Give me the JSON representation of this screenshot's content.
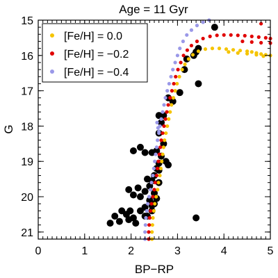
{
  "chart_data": {
    "type": "scatter",
    "title": "Age = 11 Gyr",
    "xlabel": "BP−RP",
    "ylabel": "G",
    "xlim": [
      0,
      5
    ],
    "ylim": [
      21.2,
      15
    ],
    "y_inverted": true,
    "x_ticks": [
      0,
      1,
      2,
      3,
      4,
      5
    ],
    "x_tick_labels": [
      "0",
      "1",
      "2",
      "3",
      "4",
      "5"
    ],
    "y_ticks": [
      15,
      16,
      17,
      18,
      19,
      20,
      21
    ],
    "y_tick_labels": [
      "15",
      "16",
      "17",
      "18",
      "19",
      "20",
      "21"
    ],
    "grid": false,
    "legend_position": "top-left",
    "series": [
      {
        "name": "[Fe/H] = 0.0",
        "color": "#f5c400",
        "points": [
          [
            2.45,
            21.2
          ],
          [
            2.45,
            21.0
          ],
          [
            2.46,
            20.8
          ],
          [
            2.47,
            20.6
          ],
          [
            2.49,
            20.4
          ],
          [
            2.51,
            20.2
          ],
          [
            2.54,
            20.0
          ],
          [
            2.57,
            19.8
          ],
          [
            2.59,
            19.6
          ],
          [
            2.62,
            19.4
          ],
          [
            2.64,
            19.2
          ],
          [
            2.66,
            19.0
          ],
          [
            2.68,
            18.8
          ],
          [
            2.7,
            18.6
          ],
          [
            2.72,
            18.4
          ],
          [
            2.75,
            18.2
          ],
          [
            2.78,
            18.0
          ],
          [
            2.81,
            17.8
          ],
          [
            2.84,
            17.6
          ],
          [
            2.87,
            17.4
          ],
          [
            2.91,
            17.2
          ],
          [
            2.95,
            17.0
          ],
          [
            2.99,
            16.8
          ],
          [
            3.04,
            16.6
          ],
          [
            3.1,
            16.4
          ],
          [
            3.16,
            16.25
          ],
          [
            3.24,
            16.1
          ],
          [
            3.33,
            15.98
          ],
          [
            3.45,
            15.88
          ],
          [
            3.6,
            15.82
          ],
          [
            3.75,
            15.8
          ],
          [
            3.9,
            15.8
          ],
          [
            4.05,
            15.82
          ],
          [
            4.2,
            15.84
          ],
          [
            4.35,
            15.86
          ],
          [
            4.5,
            15.88
          ],
          [
            4.6,
            15.9
          ],
          [
            4.7,
            15.93
          ],
          [
            4.8,
            15.96
          ],
          [
            4.9,
            15.98
          ],
          [
            5.0,
            16.0
          ],
          [
            4.1,
            15.9
          ],
          [
            4.3,
            15.93
          ],
          [
            4.5,
            15.95
          ],
          [
            4.7,
            15.98
          ],
          [
            4.85,
            16.02
          ]
        ]
      },
      {
        "name": "[Fe/H] = −0.2",
        "color": "#e00000",
        "points": [
          [
            2.38,
            21.2
          ],
          [
            2.38,
            21.0
          ],
          [
            2.39,
            20.8
          ],
          [
            2.4,
            20.6
          ],
          [
            2.42,
            20.4
          ],
          [
            2.44,
            20.2
          ],
          [
            2.47,
            20.0
          ],
          [
            2.5,
            19.8
          ],
          [
            2.52,
            19.6
          ],
          [
            2.55,
            19.4
          ],
          [
            2.57,
            19.2
          ],
          [
            2.59,
            19.0
          ],
          [
            2.61,
            18.8
          ],
          [
            2.63,
            18.6
          ],
          [
            2.65,
            18.4
          ],
          [
            2.68,
            18.2
          ],
          [
            2.71,
            18.0
          ],
          [
            2.74,
            17.8
          ],
          [
            2.77,
            17.6
          ],
          [
            2.8,
            17.4
          ],
          [
            2.84,
            17.2
          ],
          [
            2.88,
            17.0
          ],
          [
            2.92,
            16.8
          ],
          [
            2.96,
            16.6
          ],
          [
            3.01,
            16.4
          ],
          [
            3.07,
            16.2
          ],
          [
            3.13,
            16.0
          ],
          [
            3.21,
            15.85
          ],
          [
            3.3,
            15.72
          ],
          [
            3.42,
            15.6
          ],
          [
            3.55,
            15.52
          ],
          [
            3.7,
            15.46
          ],
          [
            3.85,
            15.43
          ],
          [
            4.0,
            15.42
          ],
          [
            4.15,
            15.42
          ],
          [
            4.3,
            15.43
          ],
          [
            4.45,
            15.44
          ],
          [
            4.6,
            15.46
          ],
          [
            4.75,
            15.48
          ],
          [
            4.9,
            15.5
          ],
          [
            5.0,
            15.52
          ],
          [
            4.8,
            15.1
          ],
          [
            4.4,
            15.6
          ],
          [
            4.6,
            15.62
          ],
          [
            4.8,
            15.64
          ],
          [
            5.0,
            15.65
          ]
        ]
      },
      {
        "name": "[Fe/H] = −0.4",
        "color": "#9a98e8",
        "points": [
          [
            2.3,
            21.2
          ],
          [
            2.3,
            21.0
          ],
          [
            2.31,
            20.8
          ],
          [
            2.32,
            20.6
          ],
          [
            2.34,
            20.4
          ],
          [
            2.36,
            20.2
          ],
          [
            2.39,
            20.0
          ],
          [
            2.42,
            19.8
          ],
          [
            2.44,
            19.6
          ],
          [
            2.47,
            19.4
          ],
          [
            2.49,
            19.2
          ],
          [
            2.51,
            19.0
          ],
          [
            2.53,
            18.8
          ],
          [
            2.55,
            18.6
          ],
          [
            2.57,
            18.4
          ],
          [
            2.6,
            18.2
          ],
          [
            2.62,
            18.0
          ],
          [
            2.65,
            17.8
          ],
          [
            2.68,
            17.6
          ],
          [
            2.71,
            17.4
          ],
          [
            2.74,
            17.2
          ],
          [
            2.78,
            17.0
          ],
          [
            2.82,
            16.8
          ],
          [
            2.86,
            16.6
          ],
          [
            2.9,
            16.4
          ],
          [
            2.95,
            16.2
          ],
          [
            3.0,
            16.0
          ],
          [
            3.05,
            15.8
          ],
          [
            3.12,
            15.6
          ],
          [
            3.2,
            15.42
          ],
          [
            3.3,
            15.28
          ],
          [
            3.42,
            15.15
          ],
          [
            3.55,
            15.06
          ],
          [
            3.68,
            15.0
          ],
          [
            3.8,
            14.96
          ],
          [
            2.56,
            17.9
          ],
          [
            2.58,
            18.05
          ],
          [
            2.6,
            18.15
          ]
        ]
      }
    ],
    "observed": {
      "name": "",
      "color": "#000000",
      "points": [
        [
          1.55,
          20.75
        ],
        [
          1.65,
          20.55
        ],
        [
          1.75,
          20.7
        ],
        [
          1.8,
          20.4
        ],
        [
          1.9,
          20.5
        ],
        [
          1.95,
          20.65
        ],
        [
          1.98,
          20.4
        ],
        [
          2.05,
          20.6
        ],
        [
          2.1,
          20.75
        ],
        [
          2.2,
          20.4
        ],
        [
          2.3,
          20.3
        ],
        [
          2.35,
          20.55
        ],
        [
          2.45,
          20.25
        ],
        [
          2.5,
          20.2
        ],
        [
          2.55,
          20.05
        ],
        [
          1.95,
          19.8
        ],
        [
          2.05,
          19.95
        ],
        [
          2.2,
          20.0
        ],
        [
          2.3,
          19.85
        ],
        [
          2.4,
          19.7
        ],
        [
          2.45,
          19.55
        ],
        [
          2.5,
          19.4
        ],
        [
          2.55,
          19.2
        ],
        [
          2.6,
          19.05
        ],
        [
          2.55,
          18.7
        ],
        [
          2.45,
          18.75
        ],
        [
          2.3,
          18.75
        ],
        [
          2.2,
          18.6
        ],
        [
          2.05,
          18.7
        ],
        [
          2.7,
          18.5
        ],
        [
          2.75,
          19.0
        ],
        [
          2.8,
          19.1
        ],
        [
          2.6,
          18.2
        ],
        [
          2.65,
          17.9
        ],
        [
          2.7,
          17.7
        ],
        [
          2.9,
          17.3
        ],
        [
          2.6,
          17.7
        ],
        [
          2.8,
          17.2
        ],
        [
          2.35,
          19.5
        ],
        [
          2.15,
          19.75
        ],
        [
          2.4,
          20.1
        ],
        [
          2.6,
          19.6
        ],
        [
          3.4,
          20.6
        ],
        [
          3.05,
          17.05
        ],
        [
          3.15,
          16.4
        ],
        [
          3.2,
          16.1
        ],
        [
          3.35,
          16.0
        ],
        [
          3.4,
          15.9
        ],
        [
          3.45,
          15.8
        ],
        [
          3.45,
          16.8
        ],
        [
          3.8,
          15.2
        ],
        [
          2.6,
          19.25
        ],
        [
          2.65,
          18.85
        ],
        [
          2.45,
          20.4
        ],
        [
          2.3,
          20.55
        ],
        [
          2.5,
          19.9
        ]
      ]
    }
  }
}
